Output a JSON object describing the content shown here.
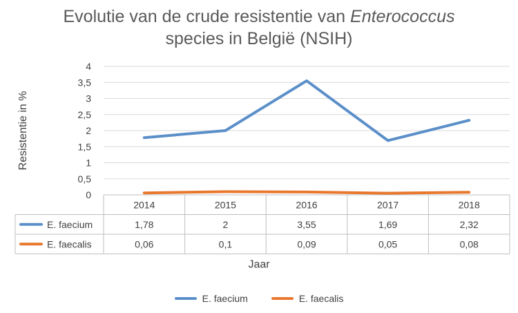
{
  "chart_data": {
    "type": "line",
    "title_line1_prefix": "Evolutie van de crude resistentie van ",
    "title_line1_italic": "Enterococcus",
    "title_line2": "species in België (NSIH)",
    "ylabel": "Resistentie in %",
    "xlabel": "Jaar",
    "ylim": [
      0,
      4
    ],
    "yticks": [
      "0",
      "0,5",
      "1",
      "1,5",
      "2",
      "2,5",
      "3",
      "3,5",
      "4"
    ],
    "categories": [
      "2014",
      "2015",
      "2016",
      "2017",
      "2018"
    ],
    "series": [
      {
        "name": "E. faecium",
        "color": "#5B8FC9",
        "values": [
          1.78,
          2,
          3.55,
          1.69,
          2.32
        ],
        "labels": [
          "1,78",
          "2",
          "3,55",
          "1,69",
          "2,32"
        ]
      },
      {
        "name": "E. faecalis",
        "color": "#E8782E",
        "values": [
          0.06,
          0.1,
          0.09,
          0.05,
          0.08
        ],
        "labels": [
          "0,06",
          "0,1",
          "0,09",
          "0,05",
          "0,08"
        ]
      }
    ],
    "grid": true,
    "data_table": true,
    "legend": "bottom"
  }
}
